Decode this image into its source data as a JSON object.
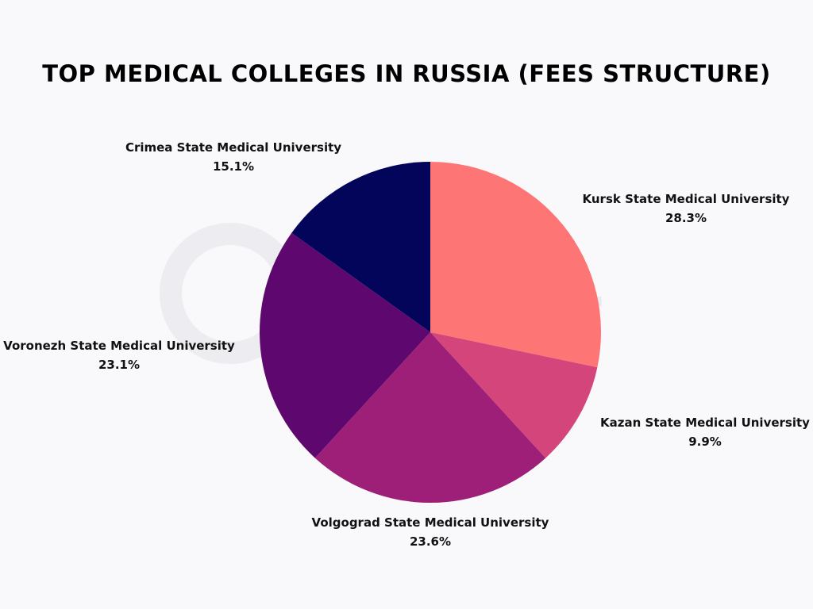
{
  "chart_data": {
    "type": "pie",
    "title": "TOP MEDICAL COLLEGES IN RUSSIA (FEES STRUCTURE)",
    "watermark": "ollifever",
    "start_angle_deg": 0,
    "slices": [
      {
        "label": "Kursk State Medical University",
        "value": 28.3,
        "value_label": "28.3%",
        "color": "#fe7575",
        "label_anchor": "middle"
      },
      {
        "label": "Kazan State Medical University",
        "value": 9.9,
        "value_label": "9.9%",
        "color": "#d4457b",
        "label_anchor": "middle"
      },
      {
        "label": "Volgograd State Medical University",
        "value": 23.6,
        "value_label": "23.6%",
        "color": "#9e1f78",
        "label_anchor": "middle"
      },
      {
        "label": "Voronezh State Medical University",
        "value": 23.1,
        "value_label": "23.1%",
        "color": "#5e076f",
        "label_anchor": "middle"
      },
      {
        "label": "Crimea State Medical University",
        "value": 15.1,
        "value_label": "15.1%",
        "color": "#03055b",
        "label_anchor": "middle"
      }
    ]
  }
}
